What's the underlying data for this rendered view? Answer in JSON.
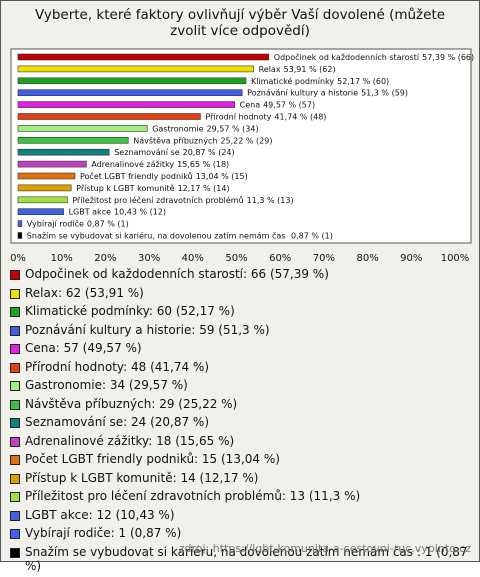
{
  "chart_data": {
    "type": "bar",
    "orientation": "horizontal",
    "title": "Vyberte, které faktory ovlivňují výběr Vaší dovolené (můžete zvolit více odpovědí)",
    "categories": [
      "Odpočinek od každodenních starostí",
      "Relax",
      "Klimatické podmínky",
      "Poznávání kultury a historie",
      "Cena",
      "Přírodní hodnoty",
      "Gastronomie",
      "Návštěva příbuzných",
      "Seznamování se",
      "Adrenalinové zážitky",
      "Počet LGBT friendly podniků",
      "Přístup k LGBT komunitě",
      "Příležitost pro léčení zdravotních problémů",
      "LGBT akce",
      "Vybírají rodiče",
      "Snažím se vybudovat si kariéru, na dovolenou zatím nemám čas "
    ],
    "values": [
      57.39,
      53.91,
      52.17,
      51.3,
      49.57,
      41.74,
      29.57,
      25.22,
      20.87,
      15.65,
      13.04,
      12.17,
      11.3,
      10.43,
      0.87,
      0.87
    ],
    "value_labels": [
      "57,39 % (66)",
      "53,91 % (62)",
      "52,17 % (60)",
      "51,3 % (59)",
      "49,57 % (57)",
      "41,74 % (48)",
      "29,57 % (34)",
      "25,22 % (29)",
      "20,87 % (24)",
      "15,65 % (18)",
      "13,04 % (15)",
      "12,17 % (14)",
      "11,3 % (13)",
      "10,43 % (12)",
      "0,87 % (1)",
      "0,87 % (1)"
    ],
    "colors": [
      "#c00000",
      "#f0e000",
      "#20a020",
      "#4060e0",
      "#e020e0",
      "#e04010",
      "#a0f080",
      "#40c040",
      "#108080",
      "#c040c0",
      "#e07010",
      "#e0a000",
      "#a0e040",
      "#4060e0",
      "#4060f0",
      "#000000"
    ],
    "legend": [
      "Odpočinek od každodenních starostí: 66 (57,39 %)",
      "Relax: 62 (53,91 %)",
      "Klimatické podmínky: 60 (52,17 %)",
      "Poznávání kultury a historie: 59 (51,3 %)",
      "Cena: 57 (49,57 %)",
      "Přírodní hodnoty: 48 (41,74 %)",
      "Gastronomie: 34 (29,57 %)",
      "Návštěva příbuzných: 29 (25,22 %)",
      "Seznamování se: 24 (20,87 %)",
      "Adrenalinové zážitky: 18 (15,65 %)",
      "Počet LGBT friendly podniků: 15 (13,04 %)",
      "Přístup k LGBT komunitě: 14 (12,17 %)",
      "Příležitost pro léčení zdravotních problémů: 13 (11,3 %)",
      "LGBT akce: 12 (10,43 %)",
      "Vybírají rodiče: 1 (0,87 %)",
      "Snažím se vybudovat si kariéru, na dovolenou zatím nemám čas : 1 (0,87 %)"
    ],
    "xlim": [
      0,
      100
    ],
    "xticks": [
      {
        "value": 0,
        "label": "0%"
      },
      {
        "value": 10,
        "label": "10%"
      },
      {
        "value": 20,
        "label": "20%"
      },
      {
        "value": 30,
        "label": "30%"
      },
      {
        "value": 40,
        "label": "40%"
      },
      {
        "value": 50,
        "label": "50%"
      },
      {
        "value": 60,
        "label": "60%"
      },
      {
        "value": 70,
        "label": "70%"
      },
      {
        "value": 80,
        "label": "80%"
      },
      {
        "value": 90,
        "label": "90%"
      },
      {
        "value": 100,
        "label": "100%"
      }
    ],
    "grid": false,
    "source": "zdroj: https://lgbt-komunita-a-cestovni-ruc.vyplnto.cz"
  }
}
